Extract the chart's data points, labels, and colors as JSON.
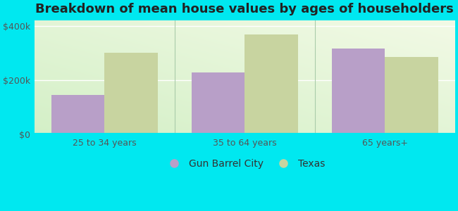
{
  "title": "Breakdown of mean house values by ages of householders",
  "categories": [
    "25 to 34 years",
    "35 to 64 years",
    "65 years+"
  ],
  "gun_barrel_city": [
    145000,
    228000,
    318000
  ],
  "texas": [
    300000,
    370000,
    285000
  ],
  "bar_color_city": "#b89fc8",
  "bar_color_texas": "#c8d4a0",
  "ylim": [
    0,
    420000
  ],
  "yticks": [
    0,
    200000,
    400000
  ],
  "ytick_labels": [
    "$0",
    "$200k",
    "$400k"
  ],
  "background_color": "#00e8f0",
  "plot_bg_color": "#e8f5e0",
  "legend_city": "Gun Barrel City",
  "legend_texas": "Texas",
  "bar_width": 0.38,
  "title_fontsize": 13,
  "tick_fontsize": 9,
  "legend_fontsize": 10
}
